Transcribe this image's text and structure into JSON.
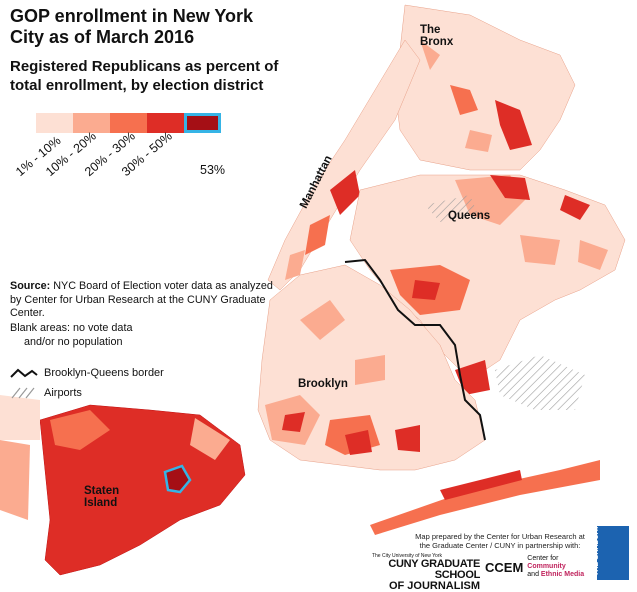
{
  "title": "GOP enrollment in New York City as of March 2016",
  "subtitle": "Registered Republicans as percent of total enrollment, by election district",
  "legend": [
    {
      "label": "1% - 10%",
      "color": "#fde0d4"
    },
    {
      "label": "10% - 20%",
      "color": "#fbab90"
    },
    {
      "label": "20% - 30%",
      "color": "#f6704f"
    },
    {
      "label": "30% - 50%",
      "color": "#de2d26"
    },
    {
      "label": "53%",
      "color": "#a50f15",
      "outline": "#35b4e6"
    }
  ],
  "source": {
    "label": "Source:",
    "text": "NYC Board of Election voter data as analyzed by Center for Urban Research at the CUNY Graduate Center."
  },
  "blank_note": {
    "line1": "Blank areas: no vote data",
    "line2": "and/or no population"
  },
  "key": {
    "border": "Brooklyn-Queens border",
    "airports": "Airports"
  },
  "places": {
    "bronx_1": "The",
    "bronx_2": "Bronx",
    "manhattan": "Manhattan",
    "queens": "Queens",
    "brooklyn": "Brooklyn",
    "staten_1": "Staten",
    "staten_2": "Island"
  },
  "credit": "Map prepared by the Center for Urban Research at the Graduate Center / CUNY in partnership with:",
  "logos": {
    "cuny_small": "The City University of New York",
    "cuny_line1": "CUNY GRADUATE SCHOOL",
    "cuny_line2": "OF JOURNALISM",
    "ccem_name": "CCEM",
    "ccem_desc1": "Center for",
    "ccem_desc2": "Community",
    "ccem_desc3": "and",
    "ccem_desc4": "Ethnic Media",
    "gc": "THE GRADUATE CENTER"
  }
}
